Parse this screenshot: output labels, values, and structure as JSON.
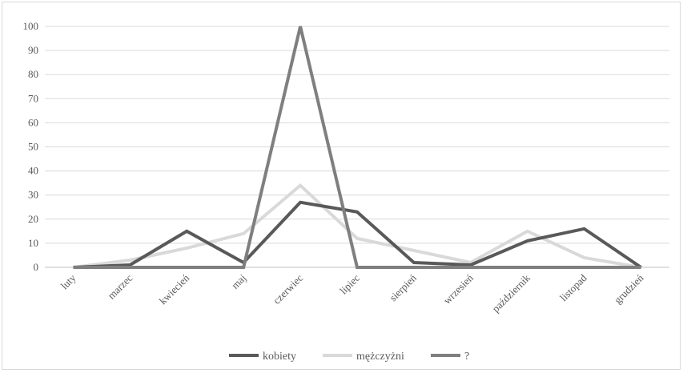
{
  "chart_data": {
    "type": "line",
    "title": "",
    "xlabel": "",
    "ylabel": "",
    "ylim": [
      0,
      100
    ],
    "yticks": [
      0,
      10,
      20,
      30,
      40,
      50,
      60,
      70,
      80,
      90,
      100
    ],
    "grid": true,
    "legend_position": "bottom",
    "categories": [
      "luty",
      "marzec",
      "kwiecień",
      "maj",
      "czerwiec",
      "lipiec",
      "sierpień",
      "wrzesień",
      "październik",
      "listopad",
      "grudzień"
    ],
    "series": [
      {
        "name": "kobiety",
        "color": "#595959",
        "values": [
          0,
          1,
          15,
          2,
          27,
          23,
          2,
          1,
          11,
          16,
          0
        ]
      },
      {
        "name": "mężczyżni",
        "color": "#d9d9d9",
        "values": [
          0,
          3,
          8,
          14,
          34,
          12,
          7,
          2,
          15,
          4,
          0
        ]
      },
      {
        "name": "?",
        "color": "#7f7f7f",
        "values": [
          0,
          0,
          0,
          0,
          100,
          0,
          0,
          0,
          0,
          0,
          0
        ]
      }
    ]
  }
}
